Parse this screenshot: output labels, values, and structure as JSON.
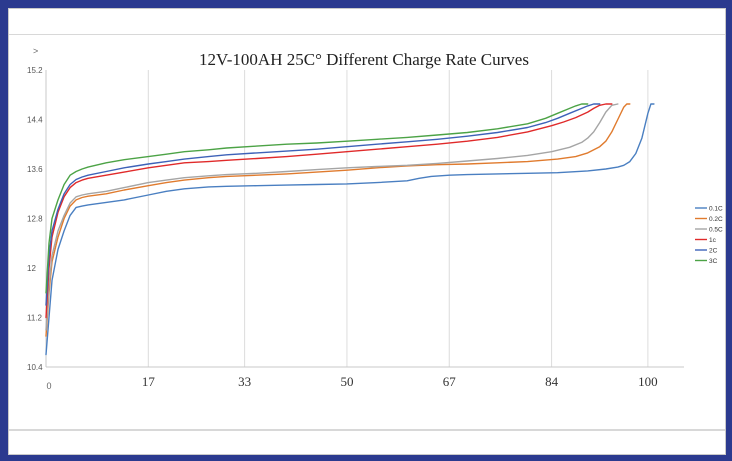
{
  "chart_data": {
    "type": "line",
    "title": "12V-100AH 25C° Different Charge Rate Curves",
    "corner_mark": ">",
    "origin_label": "0",
    "xlabel": "",
    "ylabel": "",
    "x_ticks": [
      "17",
      "33",
      "50",
      "67",
      "84",
      "100"
    ],
    "y_ticks": [
      "15.2",
      "14.4",
      "13.6",
      "12.8",
      "12",
      "11.2",
      "10.4"
    ],
    "xlim": [
      0,
      106
    ],
    "ylim": [
      10.4,
      15.2
    ],
    "grid": "vertical",
    "legend_position": "right",
    "series": [
      {
        "name": "0.1C",
        "color": "#4a7fc1",
        "x": [
          0,
          0.5,
          1,
          2,
          3,
          4,
          5,
          6,
          7,
          10,
          13,
          17,
          20,
          23,
          27,
          30,
          35,
          40,
          45,
          50,
          55,
          60,
          62,
          64,
          67,
          70,
          75,
          80,
          85,
          90,
          93,
          95,
          96,
          97,
          98,
          99,
          100,
          100.5,
          101
        ],
        "y": [
          10.6,
          11.2,
          11.8,
          12.3,
          12.6,
          12.85,
          12.98,
          13.0,
          13.02,
          13.06,
          13.1,
          13.18,
          13.24,
          13.28,
          13.31,
          13.32,
          13.33,
          13.34,
          13.35,
          13.36,
          13.38,
          13.41,
          13.45,
          13.48,
          13.5,
          13.51,
          13.52,
          13.53,
          13.54,
          13.57,
          13.6,
          13.63,
          13.66,
          13.72,
          13.85,
          14.1,
          14.5,
          14.65,
          14.65
        ]
      },
      {
        "name": "0.2C",
        "color": "#e07b2e",
        "x": [
          0,
          0.5,
          1,
          2,
          3,
          4,
          5,
          6,
          7,
          10,
          13,
          17,
          20,
          23,
          27,
          30,
          35,
          40,
          45,
          50,
          55,
          60,
          65,
          70,
          75,
          80,
          85,
          88,
          90,
          92,
          93,
          94,
          95,
          96,
          96.5,
          97
        ],
        "y": [
          10.9,
          11.6,
          12.1,
          12.5,
          12.8,
          13.0,
          13.1,
          13.14,
          13.16,
          13.2,
          13.26,
          13.33,
          13.38,
          13.42,
          13.46,
          13.48,
          13.5,
          13.52,
          13.55,
          13.58,
          13.62,
          13.65,
          13.67,
          13.68,
          13.7,
          13.72,
          13.76,
          13.8,
          13.86,
          13.96,
          14.05,
          14.2,
          14.4,
          14.6,
          14.65,
          14.65
        ]
      },
      {
        "name": "0.5C",
        "color": "#a5a5a5",
        "x": [
          0,
          0.5,
          1,
          2,
          3,
          4,
          5,
          6,
          7,
          10,
          13,
          17,
          20,
          23,
          27,
          30,
          35,
          40,
          45,
          50,
          55,
          60,
          65,
          70,
          75,
          80,
          84,
          87,
          89,
          90,
          91,
          92,
          93,
          94,
          95
        ],
        "y": [
          11.0,
          11.7,
          12.2,
          12.6,
          12.85,
          13.05,
          13.15,
          13.18,
          13.2,
          13.24,
          13.3,
          13.38,
          13.42,
          13.46,
          13.49,
          13.51,
          13.53,
          13.56,
          13.59,
          13.62,
          13.64,
          13.66,
          13.69,
          13.73,
          13.77,
          13.82,
          13.88,
          13.95,
          14.03,
          14.1,
          14.2,
          14.35,
          14.52,
          14.63,
          14.65
        ]
      },
      {
        "name": "1c",
        "color": "#e02a2a",
        "x": [
          0,
          0.5,
          1,
          2,
          3,
          4,
          5,
          6,
          7,
          10,
          13,
          17,
          20,
          23,
          27,
          30,
          35,
          40,
          45,
          50,
          55,
          60,
          65,
          70,
          75,
          80,
          84,
          86,
          88,
          90,
          91,
          92,
          93,
          94
        ],
        "y": [
          11.2,
          12.0,
          12.5,
          12.9,
          13.15,
          13.3,
          13.38,
          13.42,
          13.45,
          13.5,
          13.55,
          13.62,
          13.66,
          13.7,
          13.72,
          13.74,
          13.77,
          13.8,
          13.84,
          13.88,
          13.92,
          13.96,
          14.0,
          14.05,
          14.11,
          14.2,
          14.3,
          14.36,
          14.43,
          14.52,
          14.58,
          14.63,
          14.65,
          14.65
        ]
      },
      {
        "name": "2C",
        "color": "#3e62b8",
        "x": [
          0,
          0.5,
          1,
          2,
          3,
          4,
          5,
          6,
          7,
          10,
          13,
          17,
          20,
          23,
          27,
          30,
          35,
          40,
          45,
          50,
          55,
          60,
          65,
          70,
          75,
          80,
          83,
          85,
          87,
          89,
          90,
          91,
          92
        ],
        "y": [
          11.4,
          12.2,
          12.6,
          12.95,
          13.2,
          13.35,
          13.43,
          13.47,
          13.5,
          13.56,
          13.62,
          13.68,
          13.72,
          13.76,
          13.8,
          13.83,
          13.86,
          13.89,
          13.92,
          13.96,
          14.0,
          14.04,
          14.08,
          14.13,
          14.19,
          14.27,
          14.35,
          14.42,
          14.5,
          14.58,
          14.62,
          14.65,
          14.65
        ]
      },
      {
        "name": "3C",
        "color": "#4ca346",
        "x": [
          0,
          0.5,
          1,
          2,
          3,
          4,
          5,
          6,
          7,
          10,
          13,
          17,
          20,
          23,
          27,
          30,
          35,
          40,
          45,
          50,
          55,
          60,
          65,
          70,
          75,
          80,
          83,
          85,
          87,
          88,
          89,
          90
        ],
        "y": [
          11.6,
          12.4,
          12.8,
          13.1,
          13.35,
          13.5,
          13.56,
          13.6,
          13.63,
          13.7,
          13.75,
          13.8,
          13.84,
          13.88,
          13.91,
          13.94,
          13.97,
          14.0,
          14.02,
          14.05,
          14.08,
          14.11,
          14.15,
          14.19,
          14.25,
          14.33,
          14.42,
          14.5,
          14.58,
          14.62,
          14.65,
          14.65
        ]
      }
    ]
  }
}
